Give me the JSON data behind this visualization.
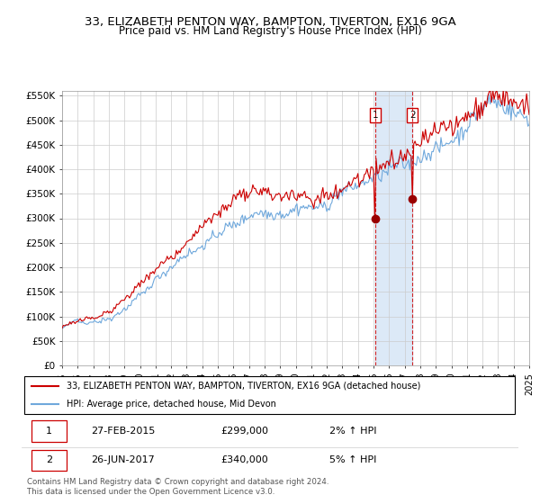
{
  "title": "33, ELIZABETH PENTON WAY, BAMPTON, TIVERTON, EX16 9GA",
  "subtitle": "Price paid vs. HM Land Registry's House Price Index (HPI)",
  "legend_line1": "33, ELIZABETH PENTON WAY, BAMPTON, TIVERTON, EX16 9GA (detached house)",
  "legend_line2": "HPI: Average price, detached house, Mid Devon",
  "transaction1_date": "27-FEB-2015",
  "transaction1_price": 299000,
  "transaction1_pct": "2% ↑ HPI",
  "transaction2_date": "26-JUN-2017",
  "transaction2_price": 340000,
  "transaction2_pct": "5% ↑ HPI",
  "footer": "Contains HM Land Registry data © Crown copyright and database right 2024.\nThis data is licensed under the Open Government Licence v3.0.",
  "hpi_color": "#6fa8dc",
  "price_color": "#cc0000",
  "dot_color": "#990000",
  "vline_color": "#cc0000",
  "shade_color": "#dce9f7",
  "ylim": [
    0,
    560000
  ],
  "yticks": [
    0,
    50000,
    100000,
    150000,
    200000,
    250000,
    300000,
    350000,
    400000,
    450000,
    500000,
    550000
  ],
  "transaction1_x": 2015.12,
  "transaction2_x": 2017.49
}
